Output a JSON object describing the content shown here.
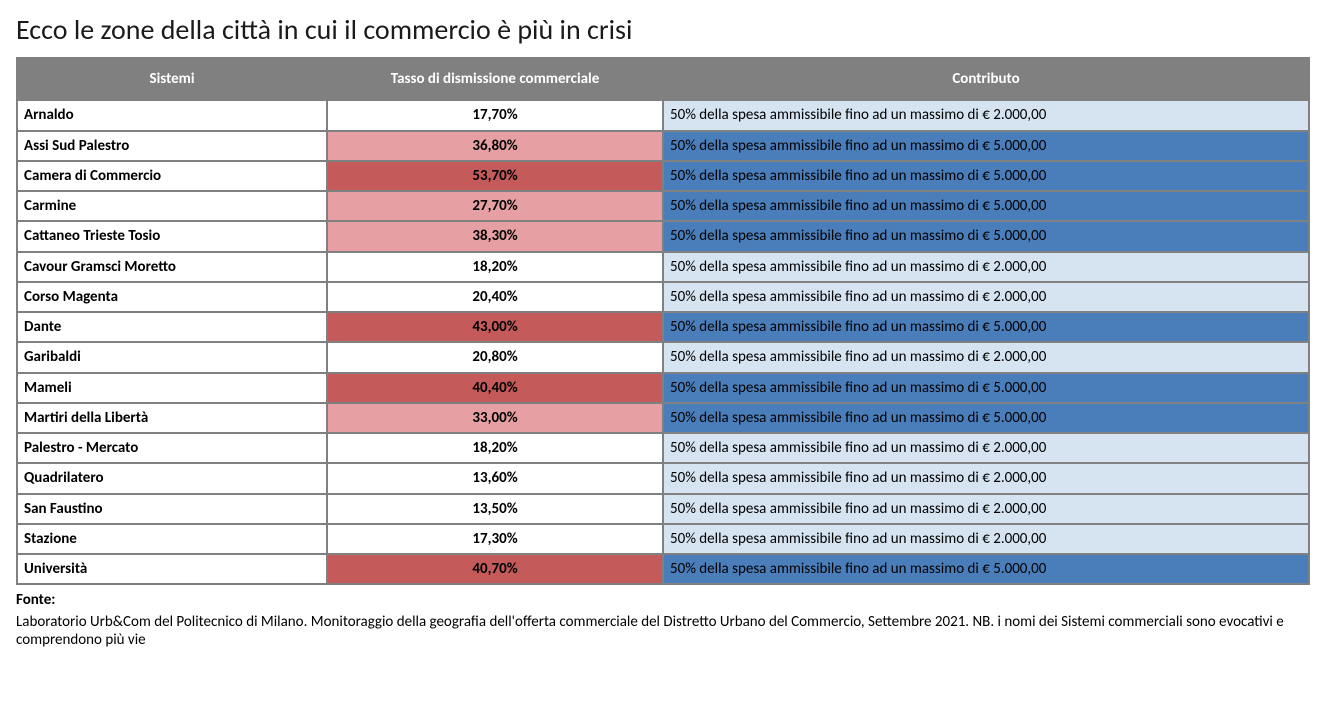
{
  "title": "Ecco le zone della città in cui il commercio è più in crisi",
  "columns": {
    "c1": "Sistemi",
    "c2": "Tasso di dismissione commerciale",
    "c3": "Contributo"
  },
  "colors": {
    "header_bg": "#808080",
    "header_fg": "#ffffff",
    "border": "#808080",
    "tasso_white": "#ffffff",
    "tasso_pink": "#e6a0a4",
    "tasso_red": "#c55a5a",
    "contrib_light": "#d6e4f2",
    "contrib_blue": "#4a7ebb"
  },
  "contrib_texts": {
    "low": "50% della spesa ammissibile fino ad un massimo di € 2.000,00",
    "high": "50% della spesa ammissibile fino ad un massimo di € 5.000,00"
  },
  "rows": [
    {
      "sistemi": "Arnaldo",
      "tasso": "17,70%",
      "tasso_bg": "#ffffff",
      "contrib_key": "low",
      "contrib_bg": "#d6e4f2"
    },
    {
      "sistemi": "Assi Sud Palestro",
      "tasso": "36,80%",
      "tasso_bg": "#e6a0a4",
      "contrib_key": "high",
      "contrib_bg": "#4a7ebb"
    },
    {
      "sistemi": "Camera di Commercio",
      "tasso": "53,70%",
      "tasso_bg": "#c55a5a",
      "contrib_key": "high",
      "contrib_bg": "#4a7ebb"
    },
    {
      "sistemi": "Carmine",
      "tasso": "27,70%",
      "tasso_bg": "#e6a0a4",
      "contrib_key": "high",
      "contrib_bg": "#4a7ebb"
    },
    {
      "sistemi": "Cattaneo Trieste Tosio",
      "tasso": "38,30%",
      "tasso_bg": "#e6a0a4",
      "contrib_key": "high",
      "contrib_bg": "#4a7ebb"
    },
    {
      "sistemi": "Cavour Gramsci Moretto",
      "tasso": "18,20%",
      "tasso_bg": "#ffffff",
      "contrib_key": "low",
      "contrib_bg": "#d6e4f2"
    },
    {
      "sistemi": "Corso Magenta",
      "tasso": "20,40%",
      "tasso_bg": "#ffffff",
      "contrib_key": "low",
      "contrib_bg": "#d6e4f2"
    },
    {
      "sistemi": "Dante",
      "tasso": "43,00%",
      "tasso_bg": "#c55a5a",
      "contrib_key": "high",
      "contrib_bg": "#4a7ebb"
    },
    {
      "sistemi": "Garibaldi",
      "tasso": "20,80%",
      "tasso_bg": "#ffffff",
      "contrib_key": "low",
      "contrib_bg": "#d6e4f2"
    },
    {
      "sistemi": "Mameli",
      "tasso": "40,40%",
      "tasso_bg": "#c55a5a",
      "contrib_key": "high",
      "contrib_bg": "#4a7ebb"
    },
    {
      "sistemi": "Martiri della Libertà",
      "tasso": "33,00%",
      "tasso_bg": "#e6a0a4",
      "contrib_key": "high",
      "contrib_bg": "#4a7ebb"
    },
    {
      "sistemi": "Palestro - Mercato",
      "tasso": "18,20%",
      "tasso_bg": "#ffffff",
      "contrib_key": "low",
      "contrib_bg": "#d6e4f2"
    },
    {
      "sistemi": "Quadrilatero",
      "tasso": "13,60%",
      "tasso_bg": "#ffffff",
      "contrib_key": "low",
      "contrib_bg": "#d6e4f2"
    },
    {
      "sistemi": "San Faustino",
      "tasso": "13,50%",
      "tasso_bg": "#ffffff",
      "contrib_key": "low",
      "contrib_bg": "#d6e4f2"
    },
    {
      "sistemi": "Stazione",
      "tasso": "17,30%",
      "tasso_bg": "#ffffff",
      "contrib_key": "low",
      "contrib_bg": "#d6e4f2"
    },
    {
      "sistemi": "Università",
      "tasso": "40,70%",
      "tasso_bg": "#c55a5a",
      "contrib_key": "high",
      "contrib_bg": "#4a7ebb"
    }
  ],
  "footnote": {
    "label": "Fonte:",
    "body": "Laboratorio Urb&Com del Politecnico di Milano. Monitoraggio della geografia dell'offerta commerciale del Distretto Urbano del Commercio, Settembre 2021. NB. i nomi dei Sistemi commerciali sono evocativi e comprendono più vie"
  }
}
